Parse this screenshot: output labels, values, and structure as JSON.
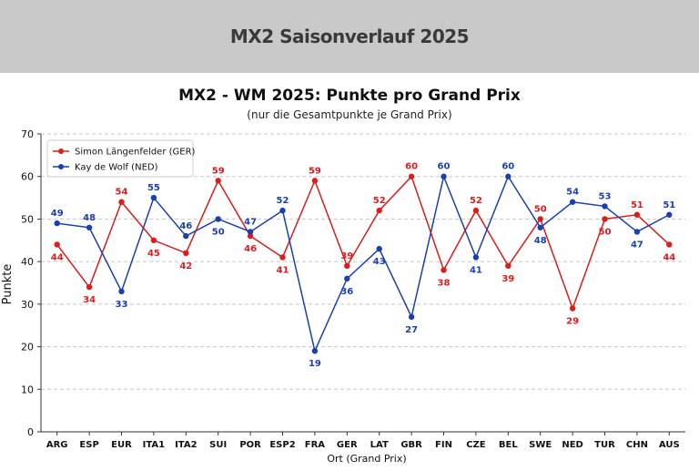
{
  "page": {
    "header_title": "MX2 Saisonverlauf 2025"
  },
  "chart_data": {
    "type": "line",
    "title": "MX2 - WM 2025: Punkte pro Grand Prix",
    "subtitle": "(nur die Gesamtpunkte je Grand Prix)",
    "xlabel": "Ort (Grand Prix)",
    "ylabel": "Punkte",
    "ylim": [
      0,
      70
    ],
    "yticks": [
      0,
      10,
      20,
      30,
      40,
      50,
      60,
      70
    ],
    "grid": "horizontal-dashed",
    "legend_position": "top-left",
    "categories": [
      "ARG",
      "ESP",
      "EUR",
      "ITA1",
      "ITA2",
      "SUI",
      "POR",
      "ESP2",
      "FRA",
      "GER",
      "LAT",
      "GBR",
      "FIN",
      "CZE",
      "BEL",
      "SWE",
      "NED",
      "TUR",
      "CHN",
      "AUS"
    ],
    "series": [
      {
        "name": "Simon Längenfelder (GER)",
        "color": "#dd1c1c",
        "values": [
          44,
          34,
          54,
          45,
          42,
          59,
          46,
          41,
          59,
          39,
          52,
          60,
          38,
          52,
          39,
          50,
          29,
          50,
          51,
          44
        ]
      },
      {
        "name": "Kay de Wolf (NED)",
        "color": "#1a3fb0",
        "values": [
          49,
          48,
          33,
          55,
          46,
          50,
          47,
          52,
          19,
          36,
          43,
          27,
          60,
          41,
          60,
          48,
          54,
          53,
          47,
          51
        ]
      }
    ]
  }
}
